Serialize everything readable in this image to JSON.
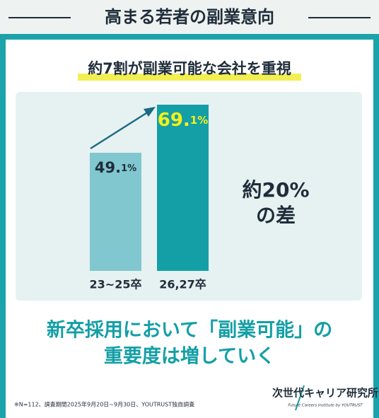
{
  "chart_data": {
    "type": "bar",
    "title": "高まる若者の副業意向",
    "subtitle": "約7割が副業可能な会社を重視",
    "categories": [
      "23~25卒",
      "26,27卒"
    ],
    "values": [
      49.1,
      69.1
    ],
    "value_labels": [
      "49.1%",
      "69.1%"
    ],
    "colors": [
      "#80c7cf",
      "#149fa6"
    ],
    "label_colors": [
      "#1f2d3a",
      "#f4f01a"
    ],
    "annotation": [
      "約20%",
      "の差"
    ]
  },
  "headline": [
    "新卒採用において「副業可能」の",
    "重要度は増していく"
  ],
  "footnote": "※N=112、調査期間2025年9月20日~9月30日、YOUTRUST独自調査",
  "logo": {
    "name": "次世代キャリア研究所",
    "tagline": "Future Careers Institute by YOUTRUST"
  }
}
